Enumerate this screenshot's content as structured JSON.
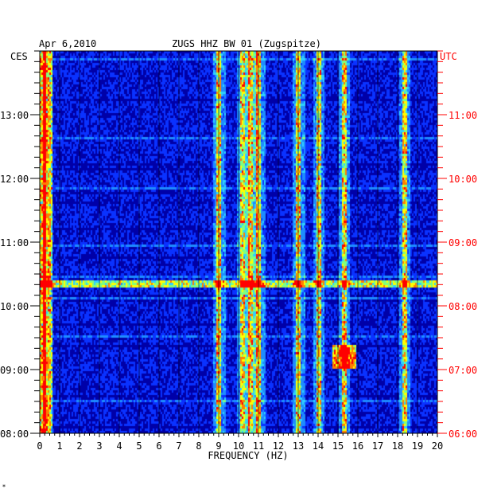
{
  "chart_data": {
    "type": "heatmap",
    "title_left": "Apr 6,2010",
    "title_center": "ZUGS HHZ BW 01 (Zugspitze)",
    "left_axis_label": "CES",
    "right_axis_label": "UTC",
    "xlabel": "FREQUENCY (HZ)",
    "x_ticks": [
      "0",
      "1",
      "2",
      "3",
      "4",
      "5",
      "6",
      "7",
      "8",
      "9",
      "10",
      "11",
      "12",
      "13",
      "14",
      "15",
      "16",
      "17",
      "18",
      "19",
      "20"
    ],
    "xlim": [
      0,
      20
    ],
    "left_time_ticks": [
      "08:00",
      "09:00",
      "10:00",
      "11:00",
      "12:00",
      "13:00"
    ],
    "right_time_ticks": [
      "06:00",
      "07:00",
      "08:00",
      "09:00",
      "10:00",
      "11:00"
    ],
    "time_range_hours": [
      8.0,
      14.0
    ],
    "strong_frequency_bands_hz": [
      0.2,
      9.0,
      10.2,
      10.6,
      11.0,
      13.0,
      14.0,
      15.3,
      18.3
    ],
    "notable_events": [
      {
        "time_ces": "10:22",
        "description": "broadband horizontal line"
      },
      {
        "time_ces": "09:13",
        "frequency_hz": 15.3,
        "description": "high-energy patch"
      }
    ],
    "colormap": [
      "#0000a0",
      "#0a32ff",
      "#1e8cff",
      "#2ed0ff",
      "#7fff7f",
      "#ffff00",
      "#ff8000",
      "#ff0000"
    ]
  },
  "footer_mark": "*"
}
